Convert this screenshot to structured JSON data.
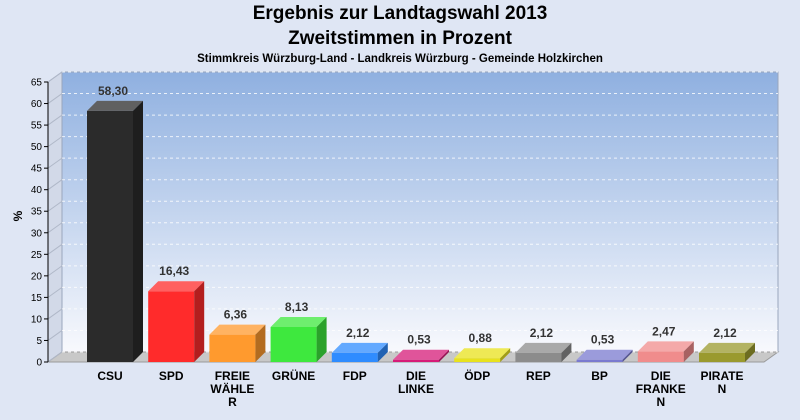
{
  "header": {
    "title_line1": "Ergebnis zur Landtagswahl 2013",
    "title_line2": "Zweitstimmen in Prozent",
    "subtitle": "Stimmkreis Würzburg-Land - Landkreis Würzburg - Gemeinde Holzkirchen"
  },
  "chart_data": {
    "type": "bar",
    "title": "Ergebnis zur Landtagswahl 2013 Zweitstimmen in Prozent",
    "subtitle": "Stimmkreis Würzburg-Land - Landkreis Würzburg - Gemeinde Holzkirchen",
    "xlabel": "",
    "ylabel": "%",
    "ylim": [
      0,
      65
    ],
    "yticks": [
      0,
      5,
      10,
      15,
      20,
      25,
      30,
      35,
      40,
      45,
      50,
      55,
      60,
      65
    ],
    "grid": true,
    "categories": [
      [
        "CSU"
      ],
      [
        "SPD"
      ],
      [
        "FREIE",
        "WÄHLE",
        "R"
      ],
      [
        "GRÜNE"
      ],
      [
        "FDP"
      ],
      [
        "DIE",
        "LINKE"
      ],
      [
        "ÖDP"
      ],
      [
        "REP"
      ],
      [
        "BP"
      ],
      [
        "DIE",
        "FRANKE",
        "N"
      ],
      [
        "PIRATE",
        "N"
      ]
    ],
    "values": [
      58.3,
      16.43,
      6.36,
      8.13,
      2.12,
      0.53,
      0.88,
      2.12,
      0.53,
      2.47,
      2.12
    ],
    "value_labels": [
      "58,30",
      "16,43",
      "6,36",
      "8,13",
      "2,12",
      "0,53",
      "0,88",
      "2,12",
      "0,53",
      "2,47",
      "2,12"
    ],
    "colors": [
      "#2b2b2b",
      "#ff2b2b",
      "#ff9a2e",
      "#3ee83e",
      "#2f8cff",
      "#d61b78",
      "#e8e21c",
      "#8c8c8c",
      "#7a7acf",
      "#f08c8c",
      "#9a9a2e"
    ]
  }
}
